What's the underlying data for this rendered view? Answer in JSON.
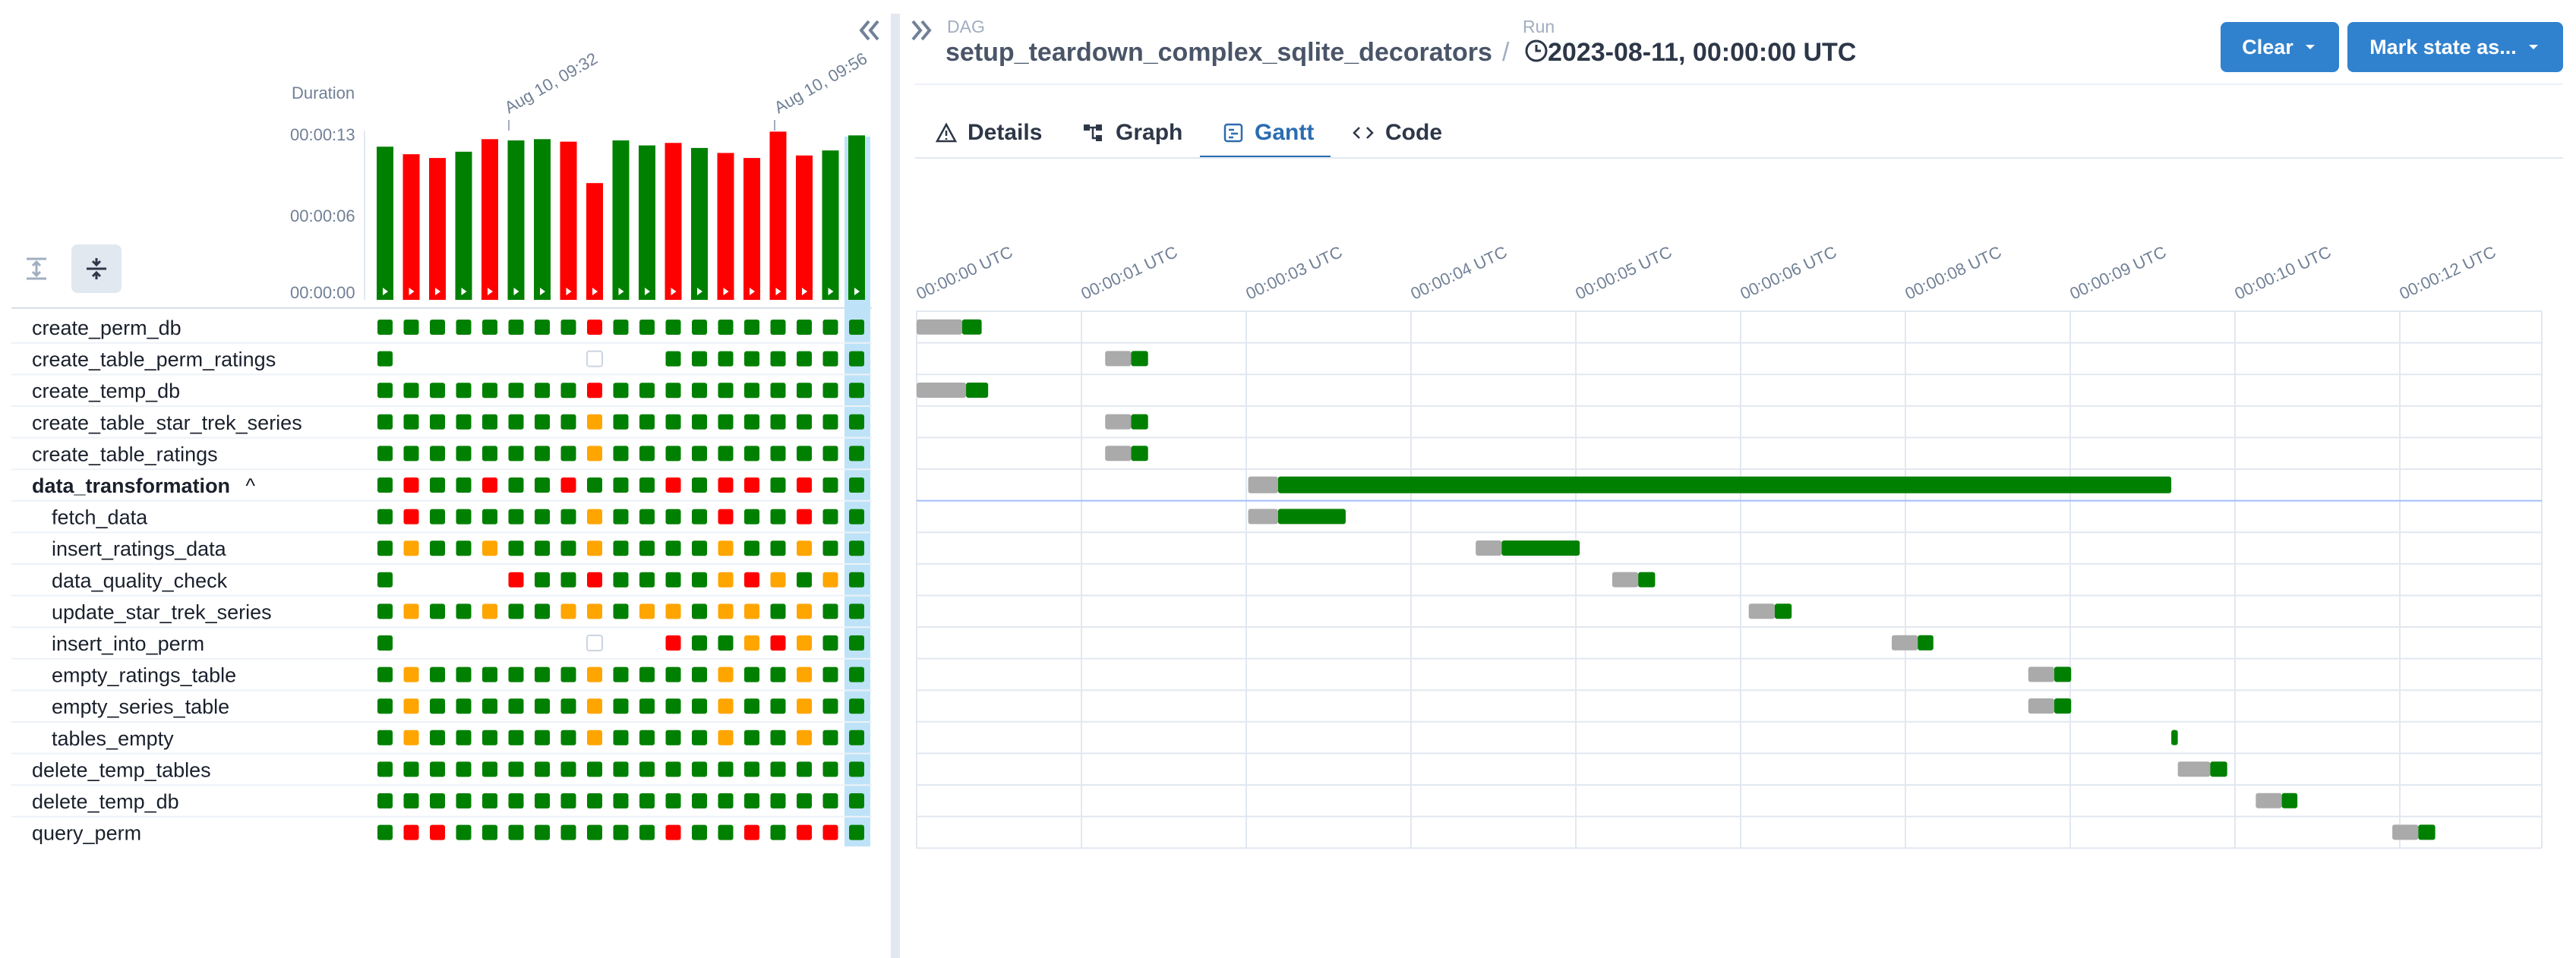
{
  "header": {
    "dag_label": "DAG",
    "dag_name": "setup_teardown_complex_sqlite_decorators",
    "separator": "/",
    "run_label": "Run",
    "run_value": "2023-08-11, 00:00:00 UTC",
    "clear_label": "Clear",
    "mark_state_label": "Mark state as...",
    "collapse_icon": "double-chevron-left-icon",
    "expand_icon": "double-chevron-right-icon"
  },
  "tabs": [
    {
      "id": "details",
      "label": "Details",
      "icon": "warning-triangle-icon",
      "active": false
    },
    {
      "id": "graph",
      "label": "Graph",
      "icon": "graph-icon",
      "active": false
    },
    {
      "id": "gantt",
      "label": "Gantt",
      "icon": "gantt-icon",
      "active": true
    },
    {
      "id": "code",
      "label": "Code",
      "icon": "code-icon",
      "active": false
    }
  ],
  "duration_chart": {
    "title": "Duration",
    "y_ticks": [
      "00:00:13",
      "00:00:06",
      "00:00:00"
    ],
    "date_labels": [
      "Aug 10, 09:32",
      "Aug 10, 09:56"
    ],
    "y_max_seconds": 13,
    "bars": [
      {
        "seconds": 12.2,
        "state": "success"
      },
      {
        "seconds": 11.6,
        "state": "failed"
      },
      {
        "seconds": 11.3,
        "state": "failed"
      },
      {
        "seconds": 11.8,
        "state": "success"
      },
      {
        "seconds": 12.8,
        "state": "failed"
      },
      {
        "seconds": 12.7,
        "state": "success"
      },
      {
        "seconds": 12.8,
        "state": "success"
      },
      {
        "seconds": 12.6,
        "state": "failed"
      },
      {
        "seconds": 9.3,
        "state": "failed"
      },
      {
        "seconds": 12.7,
        "state": "success"
      },
      {
        "seconds": 12.3,
        "state": "success"
      },
      {
        "seconds": 12.5,
        "state": "failed"
      },
      {
        "seconds": 12.1,
        "state": "success"
      },
      {
        "seconds": 11.7,
        "state": "failed"
      },
      {
        "seconds": 11.3,
        "state": "failed"
      },
      {
        "seconds": 13.4,
        "state": "failed"
      },
      {
        "seconds": 11.5,
        "state": "failed"
      },
      {
        "seconds": 11.9,
        "state": "success"
      },
      {
        "seconds": 13.1,
        "state": "success"
      }
    ]
  },
  "grid_controls": {
    "expand_icon": "expand-vertical-icon",
    "collapse_icon": "collapse-vertical-icon"
  },
  "task_rows": [
    {
      "name": "create_perm_db",
      "indent": 0,
      "bold": false,
      "states": "GGGGGGGGRGGGGGGGGGG"
    },
    {
      "name": "create_table_perm_ratings",
      "indent": 0,
      "bold": false,
      "states": "G.......N..GGGGGGGG"
    },
    {
      "name": "create_temp_db",
      "indent": 0,
      "bold": false,
      "states": "GGGGGGGGRGGGGGGGGGG"
    },
    {
      "name": "create_table_star_trek_series",
      "indent": 0,
      "bold": false,
      "states": "GGGGGGGGOGGGGGGGGGG"
    },
    {
      "name": "create_table_ratings",
      "indent": 0,
      "bold": false,
      "states": "GGGGGGGGOGGGGGGGGGG"
    },
    {
      "name": "data_transformation",
      "indent": 0,
      "bold": true,
      "caret": "^",
      "states": "GRGGRGGRGGGRGRRGRGG"
    },
    {
      "name": "fetch_data",
      "indent": 1,
      "bold": false,
      "states": "GRGGGGGGOGGGGRGGRGG"
    },
    {
      "name": "insert_ratings_data",
      "indent": 1,
      "bold": false,
      "states": "GOGGOGGGOGGGGOGGOGG"
    },
    {
      "name": "data_quality_check",
      "indent": 1,
      "bold": false,
      "states": "G....RGGRGGGGOROGOGG"
    },
    {
      "name": "update_star_trek_series",
      "indent": 1,
      "bold": false,
      "states": "GOGGOGGOOGOOGOOGOGG"
    },
    {
      "name": "insert_into_perm",
      "indent": 1,
      "bold": false,
      "states": "G.......N..RGGOROGG"
    },
    {
      "name": "empty_ratings_table",
      "indent": 1,
      "bold": false,
      "states": "GOGGGGGGOGGGGOGGOGG"
    },
    {
      "name": "empty_series_table",
      "indent": 1,
      "bold": false,
      "states": "GOGGGGGGOGGGGOGGOGG"
    },
    {
      "name": "tables_empty",
      "indent": 1,
      "bold": false,
      "states": "GOGGGGGGOGGGGOGGOGG"
    },
    {
      "name": "delete_temp_tables",
      "indent": 0,
      "bold": false,
      "states": "GGGGGGGGGGGGGGGGGGG"
    },
    {
      "name": "delete_temp_db",
      "indent": 0,
      "bold": false,
      "states": "GGGGGGGGGGGGGGGGGGG"
    },
    {
      "name": "query_perm",
      "indent": 0,
      "bold": false,
      "states": "GRRGGGGGGGGRGGRGRRG"
    }
  ],
  "gantt": {
    "time_labels": [
      "00:00:00 UTC",
      "00:00:01 UTC",
      "00:00:03 UTC",
      "00:00:04 UTC",
      "00:00:05 UTC",
      "00:00:06 UTC",
      "00:00:08 UTC",
      "00:00:09 UTC",
      "00:00:10 UTC",
      "00:00:12 UTC"
    ],
    "total_seconds": 12.5,
    "tasks": [
      {
        "queued": 0.0,
        "start": 0.35,
        "end": 0.5
      },
      {
        "queued": 1.45,
        "start": 1.65,
        "end": 1.78
      },
      {
        "queued": 0.0,
        "start": 0.38,
        "end": 0.55
      },
      {
        "queued": 1.45,
        "start": 1.65,
        "end": 1.78
      },
      {
        "queued": 1.45,
        "start": 1.65,
        "end": 1.78
      },
      {
        "queued": 2.55,
        "start": 2.78,
        "end": 9.65
      },
      {
        "queued": 2.55,
        "start": 2.78,
        "end": 3.3
      },
      {
        "queued": 4.3,
        "start": 4.5,
        "end": 5.1
      },
      {
        "queued": 5.35,
        "start": 5.55,
        "end": 5.68
      },
      {
        "queued": 6.4,
        "start": 6.6,
        "end": 6.73
      },
      {
        "queued": 7.5,
        "start": 7.7,
        "end": 7.82
      },
      {
        "queued": 8.55,
        "start": 8.75,
        "end": 8.88
      },
      {
        "queued": 8.55,
        "start": 8.75,
        "end": 8.88
      },
      {
        "queued": 9.65,
        "start": 9.65,
        "end": 9.7
      },
      {
        "queued": 9.7,
        "start": 9.95,
        "end": 10.08
      },
      {
        "queued": 10.3,
        "start": 10.5,
        "end": 10.62
      },
      {
        "queued": 11.35,
        "start": 11.55,
        "end": 11.68
      }
    ]
  },
  "colors": {
    "success": "#008000",
    "failed": "#ff0000",
    "upstream_failed": "#ffa500",
    "queued": "#aaaaaa",
    "accent": "#3182ce",
    "selected_column": "#bee3f8"
  }
}
